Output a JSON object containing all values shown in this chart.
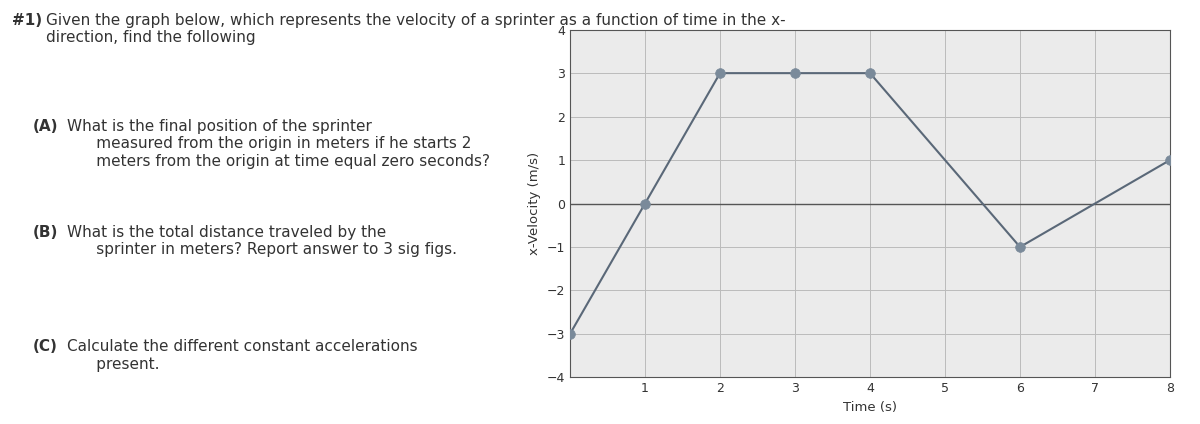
{
  "title_bold": "#1)",
  "title_rest": " Given the graph below, which represents the velocity of a sprinter as a function of time in the x-\ndirection, find the following",
  "questions": [
    {
      "label": "(A)",
      "text": "  What is the final position of the sprinter\n      measured from the origin in meters if he starts 2\n      meters from the origin at time equal zero seconds?"
    },
    {
      "label": "(B)",
      "text": "  What is the total distance traveled by the\n      sprinter in meters? Report answer to 3 sig figs."
    },
    {
      "label": "(C)",
      "text": "  Calculate the different constant accelerations\n      present."
    }
  ],
  "time": [
    0,
    1,
    2,
    3,
    4,
    6,
    8
  ],
  "velocity": [
    -3,
    0,
    3,
    3,
    3,
    -1,
    1
  ],
  "xlabel": "Time (s)",
  "ylabel": "x-Velocity (m/s)",
  "xlim": [
    0,
    8
  ],
  "ylim": [
    -4,
    4
  ],
  "xticks": [
    1,
    2,
    3,
    4,
    5,
    6,
    7,
    8
  ],
  "yticks": [
    -4,
    -3,
    -2,
    -1,
    0,
    1,
    2,
    3,
    4
  ],
  "line_color": "#5a6878",
  "marker_color": "#7a8a9a",
  "marker_size": 7,
  "grid_color": "#bbbbbb",
  "plot_bg_color": "#ebebeb",
  "text_color": "#333333",
  "title_fontsize": 11,
  "question_fontsize": 11,
  "axis_label_fontsize": 9.5,
  "tick_fontsize": 9
}
